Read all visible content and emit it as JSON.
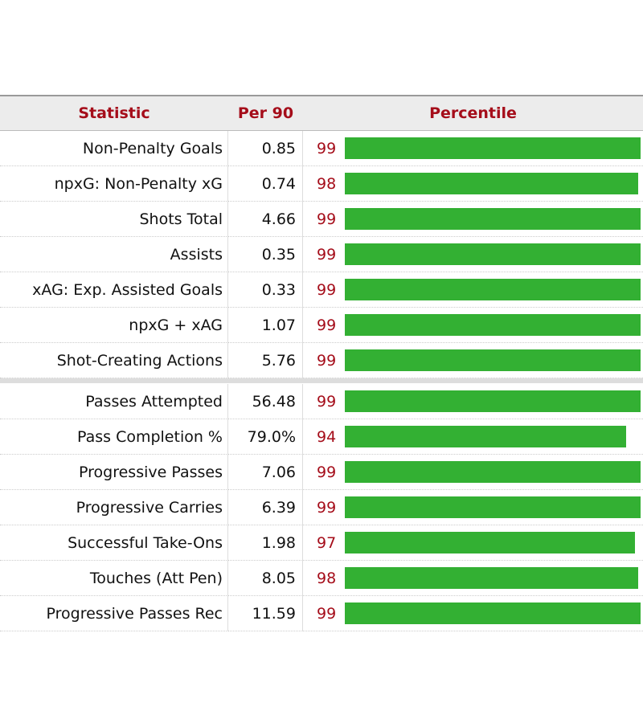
{
  "table": {
    "headers": [
      "Statistic",
      "Per 90",
      "Percentile"
    ],
    "bar_color": "#33b033",
    "percentile_max": 100,
    "groups": [
      [
        {
          "stat": "Non-Penalty Goals",
          "per90": "0.85",
          "percentile": 99
        },
        {
          "stat": "npxG: Non-Penalty xG",
          "per90": "0.74",
          "percentile": 98
        },
        {
          "stat": "Shots Total",
          "per90": "4.66",
          "percentile": 99
        },
        {
          "stat": "Assists",
          "per90": "0.35",
          "percentile": 99
        },
        {
          "stat": "xAG: Exp. Assisted Goals",
          "per90": "0.33",
          "percentile": 99
        },
        {
          "stat": "npxG + xAG",
          "per90": "1.07",
          "percentile": 99
        },
        {
          "stat": "Shot-Creating Actions",
          "per90": "5.76",
          "percentile": 99
        }
      ],
      [
        {
          "stat": "Passes Attempted",
          "per90": "56.48",
          "percentile": 99
        },
        {
          "stat": "Pass Completion %",
          "per90": "79.0%",
          "percentile": 94
        },
        {
          "stat": "Progressive Passes",
          "per90": "7.06",
          "percentile": 99
        },
        {
          "stat": "Progressive Carries",
          "per90": "6.39",
          "percentile": 99
        },
        {
          "stat": "Successful Take-Ons",
          "per90": "1.98",
          "percentile": 97
        },
        {
          "stat": "Touches (Att Pen)",
          "per90": "8.05",
          "percentile": 98
        },
        {
          "stat": "Progressive Passes Rec",
          "per90": "11.59",
          "percentile": 99
        }
      ]
    ]
  }
}
